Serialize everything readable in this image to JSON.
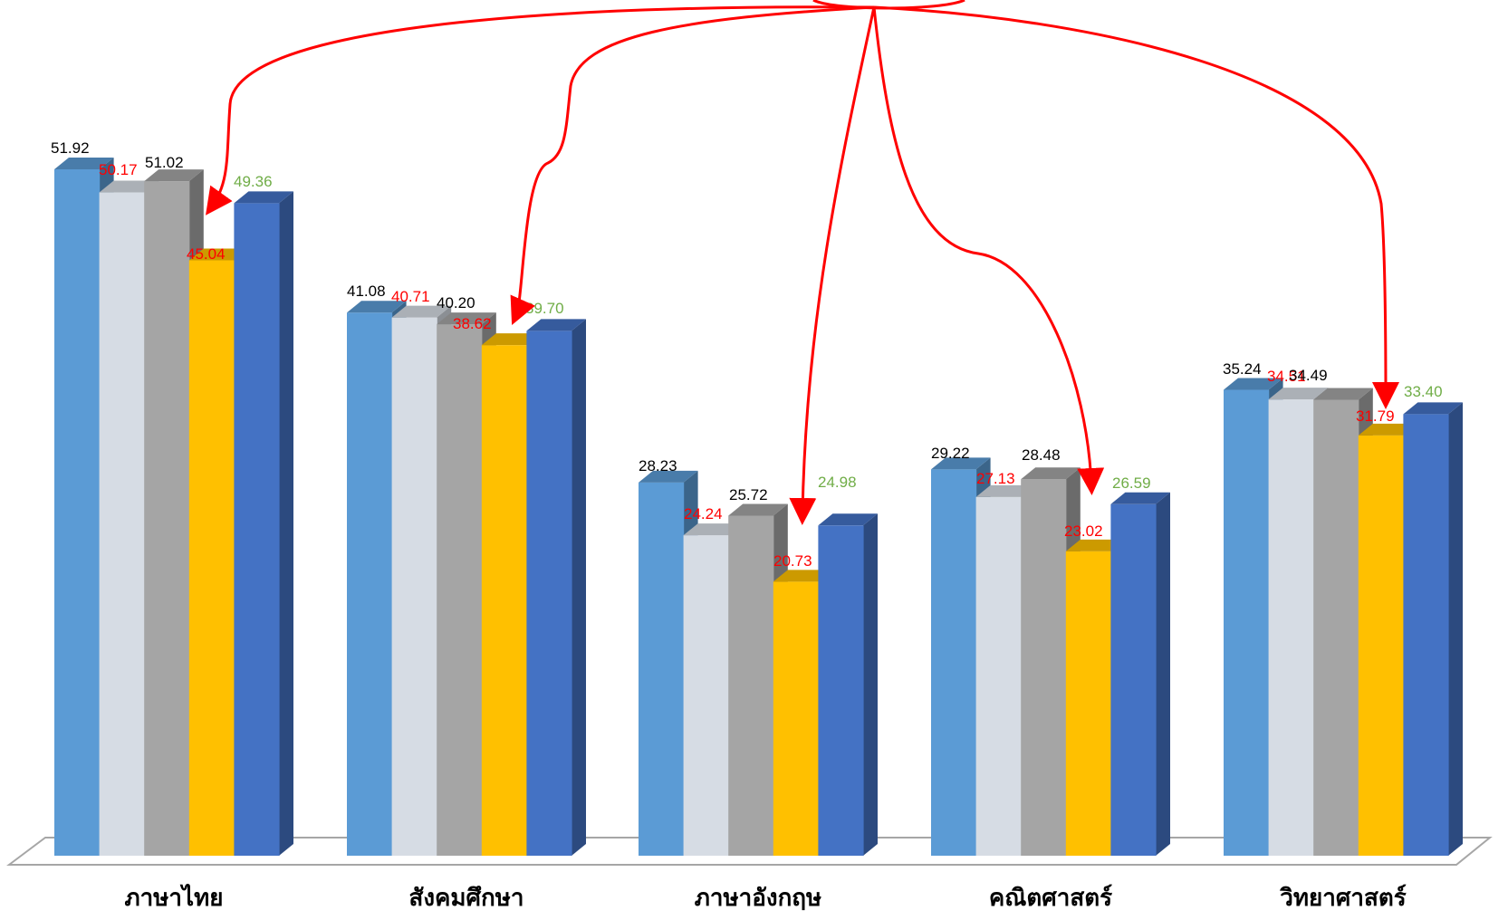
{
  "chart_data": {
    "type": "bar",
    "style": "3d-clustered-column",
    "categories": [
      "ภาษาไทย",
      "สังคมศึกษา",
      "ภาษาอังกฤษ",
      "คณิตศาสตร์",
      "วิทยาศาสตร์"
    ],
    "series": [
      {
        "values": [
          51.92,
          41.08,
          28.23,
          29.22,
          35.24
        ],
        "labels": [
          "51.92",
          "41.08",
          "28.23",
          "29.22",
          "35.24"
        ],
        "color": "#5b9bd5",
        "label_color": "#000000"
      },
      {
        "values": [
          50.17,
          40.71,
          24.24,
          27.13,
          34.51
        ],
        "labels": [
          "50.17",
          "40.71",
          "24.24",
          "27.13",
          "34.51"
        ],
        "color": "#d6dce4",
        "label_color": "#ff0000"
      },
      {
        "values": [
          51.02,
          40.2,
          25.72,
          28.48,
          34.49
        ],
        "labels": [
          "51.02",
          "40.20",
          "25.72",
          "28.48",
          "34.49"
        ],
        "color": "#a5a5a5",
        "label_color": "#000000"
      },
      {
        "values": [
          45.04,
          38.62,
          20.73,
          23.02,
          31.79
        ],
        "labels": [
          "45.04",
          "38.62",
          "20.73",
          "23.02",
          "31.79"
        ],
        "color": "#ffc000",
        "label_color": "#ff0000"
      },
      {
        "values": [
          49.36,
          39.7,
          24.98,
          26.59,
          33.4
        ],
        "labels": [
          "49.36",
          "39.70",
          "24.98",
          "26.59",
          "33.40"
        ],
        "color": "#4472c4",
        "label_color": "#70ad47"
      }
    ],
    "ylim": [
      0,
      52
    ],
    "grid": false,
    "legend": "none",
    "annotations": [
      {
        "type": "arrows",
        "from": "top-center",
        "to_series": 3,
        "color": "#ff0000"
      }
    ]
  }
}
